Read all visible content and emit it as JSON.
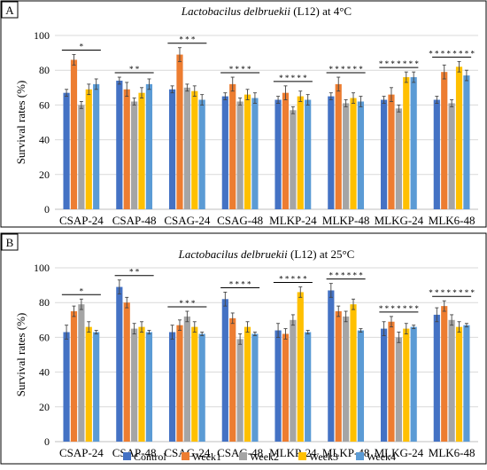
{
  "colors": {
    "Control": "#4472C4",
    "Week1": "#ED7D31",
    "Week2": "#A5A5A5",
    "Week3": "#FFC000",
    "Week4": "#5B9BD5"
  },
  "chart_data": [
    {
      "type": "bar",
      "panel_label": "A",
      "title_italic": "Lactobacilus delbruekii",
      "title_rest": " (L12) at 4°C",
      "ylabel": "Survival rates (%)",
      "ylim": [
        0,
        100
      ],
      "yticks": [
        0,
        20,
        40,
        60,
        80,
        100
      ],
      "categories": [
        "CSAP-24",
        "CSAP-48",
        "CSAG-24",
        "CSAG-48",
        "MLKP-24",
        "MLKP-48",
        "MLKG-24",
        "MLK6-48"
      ],
      "significance": [
        "*",
        "* *",
        "* * *",
        "* * * *",
        "* * * * *",
        "* * * * * *",
        "* * * * * * *",
        "* * * * * * * *"
      ],
      "series": [
        {
          "name": "Control",
          "values": [
            67,
            74,
            69,
            65,
            63,
            65,
            63,
            63
          ],
          "errors": [
            2,
            2,
            2,
            2,
            2,
            2,
            2,
            2
          ]
        },
        {
          "name": "Week1",
          "values": [
            86,
            69,
            89,
            72,
            67,
            72,
            66,
            79
          ],
          "errors": [
            3,
            4,
            4,
            4,
            4,
            4,
            4,
            4
          ]
        },
        {
          "name": "Week2",
          "values": [
            60,
            62,
            70,
            62,
            57,
            61,
            58,
            61
          ],
          "errors": [
            2,
            2,
            2,
            2,
            2,
            2,
            2,
            2
          ]
        },
        {
          "name": "Week3",
          "values": [
            69,
            67,
            68,
            66,
            65,
            64,
            76,
            82
          ],
          "errors": [
            3,
            3,
            3,
            3,
            3,
            3,
            3,
            3
          ]
        },
        {
          "name": "Week4",
          "values": [
            72,
            72,
            63,
            64,
            63,
            62,
            76,
            77
          ],
          "errors": [
            3,
            3,
            3,
            3,
            3,
            3,
            3,
            3
          ]
        }
      ]
    },
    {
      "type": "bar",
      "panel_label": "B",
      "title_italic": "Lactobacilus delbruekii",
      "title_rest": " (L12) at 25°C",
      "ylabel": "Survival rates (%)",
      "ylim": [
        0,
        100
      ],
      "yticks": [
        0,
        20,
        40,
        60,
        80,
        100
      ],
      "categories": [
        "CSAP-24",
        "CSAP-48",
        "CSAG-24",
        "CSAG-48",
        "MLKP-24",
        "MLKP-48",
        "MLKG-24",
        "MLK6-48"
      ],
      "significance": [
        "*",
        "* *",
        "* * *",
        "* * * *",
        "* * * * *",
        "* * * * * *",
        "* * * * * * *",
        "* * * * * * * *"
      ],
      "series": [
        {
          "name": "Control",
          "values": [
            63,
            89,
            63,
            82,
            64,
            87,
            65,
            73
          ],
          "errors": [
            4,
            4,
            4,
            4,
            4,
            4,
            4,
            4
          ]
        },
        {
          "name": "Week1",
          "values": [
            75,
            80,
            67,
            71,
            62,
            75,
            69,
            78
          ],
          "errors": [
            3,
            3,
            3,
            3,
            3,
            3,
            3,
            3
          ]
        },
        {
          "name": "Week2",
          "values": [
            79,
            65,
            72,
            59,
            70,
            72,
            60,
            70
          ],
          "errors": [
            3,
            3,
            3,
            3,
            3,
            3,
            3,
            3
          ]
        },
        {
          "name": "Week3",
          "values": [
            66,
            66,
            66,
            66,
            86,
            79,
            65,
            66
          ],
          "errors": [
            3,
            3,
            3,
            3,
            3,
            3,
            3,
            3
          ]
        },
        {
          "name": "Week4",
          "values": [
            63,
            63,
            62,
            62,
            63,
            64,
            66,
            67
          ],
          "errors": [
            1,
            1,
            1,
            1,
            1,
            1,
            1,
            1
          ]
        }
      ]
    }
  ],
  "legend": [
    "Control",
    "Week1",
    "Week2",
    "Week3",
    "Week4"
  ]
}
